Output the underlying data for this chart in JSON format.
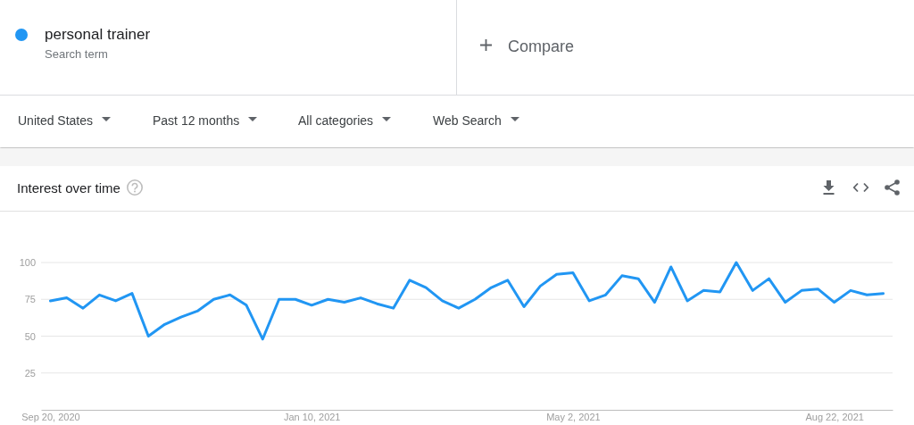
{
  "chart_data": {
    "type": "line",
    "title": "Interest over time",
    "annotations": [
      "Search term",
      "Compare",
      "United States",
      "Past 12 months",
      "All categories",
      "Web Search"
    ],
    "x": [
      "2020-09-20",
      "2020-09-27",
      "2020-10-04",
      "2020-10-11",
      "2020-10-18",
      "2020-10-25",
      "2020-11-01",
      "2020-11-08",
      "2020-11-15",
      "2020-11-22",
      "2020-11-29",
      "2020-12-06",
      "2020-12-13",
      "2020-12-20",
      "2020-12-27",
      "2021-01-03",
      "2021-01-10",
      "2021-01-17",
      "2021-01-24",
      "2021-01-31",
      "2021-02-07",
      "2021-02-14",
      "2021-02-21",
      "2021-02-28",
      "2021-03-07",
      "2021-03-14",
      "2021-03-21",
      "2021-03-28",
      "2021-04-04",
      "2021-04-11",
      "2021-04-18",
      "2021-04-25",
      "2021-05-02",
      "2021-05-09",
      "2021-05-16",
      "2021-05-23",
      "2021-05-30",
      "2021-06-06",
      "2021-06-13",
      "2021-06-20",
      "2021-06-27",
      "2021-07-04",
      "2021-07-11",
      "2021-07-18",
      "2021-07-25",
      "2021-08-01",
      "2021-08-08",
      "2021-08-15",
      "2021-08-22",
      "2021-08-29",
      "2021-09-05",
      "2021-09-12"
    ],
    "series": [
      {
        "name": "personal trainer",
        "color": "#2196f3",
        "values": [
          74,
          76,
          69,
          78,
          74,
          79,
          50,
          58,
          63,
          67,
          75,
          78,
          71,
          48,
          75,
          75,
          71,
          75,
          73,
          76,
          72,
          69,
          88,
          83,
          74,
          69,
          75,
          83,
          88,
          70,
          84,
          92,
          93,
          74,
          78,
          91,
          89,
          73,
          97,
          74,
          81,
          80,
          100,
          81,
          89,
          73,
          81,
          82,
          73,
          81,
          78,
          79
        ]
      }
    ],
    "xlim": [
      "2020-09-16",
      "2021-09-16"
    ],
    "xticks": [
      {
        "value": "2020-09-20",
        "label": "Sep 20, 2020"
      },
      {
        "value": "2021-01-10",
        "label": "Jan 10, 2021"
      },
      {
        "value": "2021-05-02",
        "label": "May 2, 2021"
      },
      {
        "value": "2021-08-22",
        "label": "Aug 22, 2021"
      }
    ],
    "ylim": [
      0,
      100
    ],
    "yticks": [
      25,
      50,
      75,
      100
    ],
    "grid": "y",
    "legend": "top left",
    "line_style": "solid"
  }
}
